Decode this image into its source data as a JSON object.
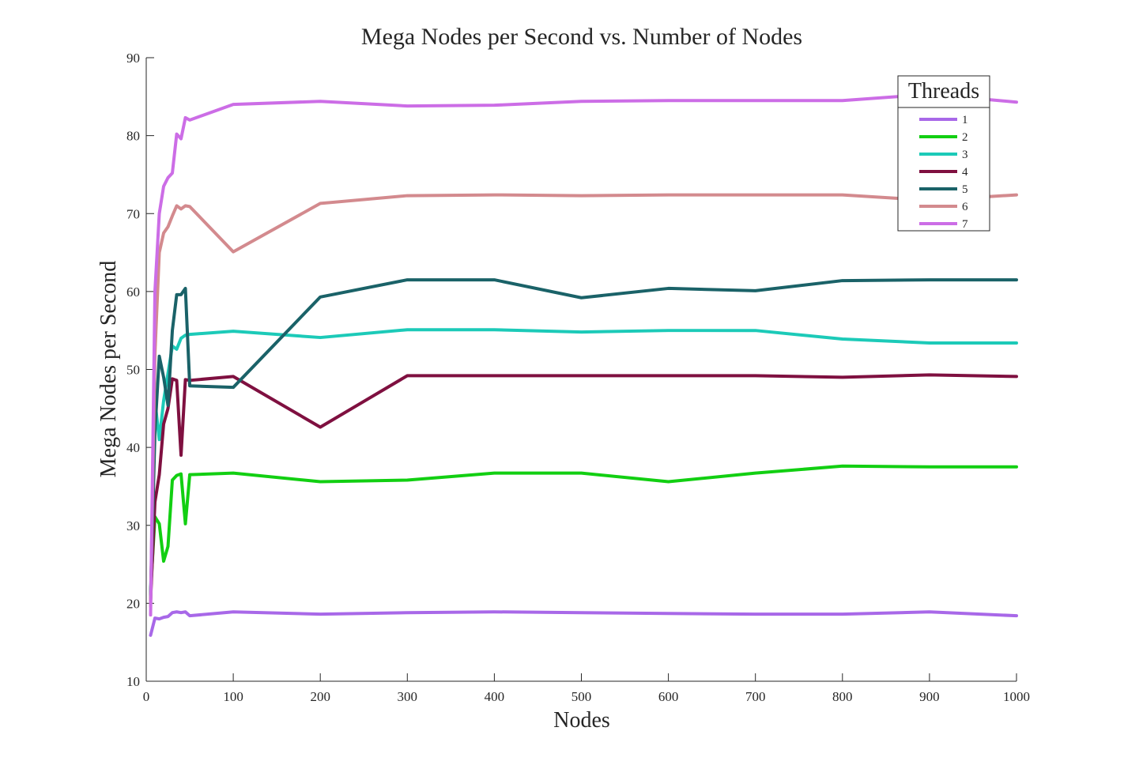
{
  "chart_data": {
    "type": "line",
    "title": "Mega Nodes per Second vs. Number of Nodes",
    "xlabel": "Nodes",
    "ylabel": "Mega Nodes per Second",
    "xlim": [
      0,
      1000
    ],
    "ylim": [
      10,
      90
    ],
    "xticks": [
      "0",
      "100",
      "200",
      "300",
      "400",
      "500",
      "600",
      "700",
      "800",
      "900",
      "1000"
    ],
    "yticks": [
      "10",
      "20",
      "30",
      "40",
      "50",
      "60",
      "70",
      "80",
      "90"
    ],
    "grid": false,
    "legend": {
      "title": "Threads",
      "position": "top-right"
    },
    "x": [
      5,
      10,
      15,
      20,
      25,
      30,
      35,
      40,
      45,
      50,
      100,
      200,
      300,
      400,
      500,
      600,
      700,
      800,
      900,
      1000
    ],
    "series": [
      {
        "name": "1",
        "color": "#a868e8",
        "values": [
          15.9,
          18.1,
          18.0,
          18.2,
          18.3,
          18.8,
          18.9,
          18.8,
          18.9,
          18.4,
          18.9,
          18.6,
          18.8,
          18.9,
          18.8,
          18.7,
          18.6,
          18.6,
          18.9,
          18.4
        ]
      },
      {
        "name": "2",
        "color": "#12cf12",
        "values": [
          21.5,
          31.1,
          30.2,
          25.4,
          27.3,
          35.8,
          36.4,
          36.6,
          30.2,
          36.5,
          36.7,
          35.6,
          35.8,
          36.7,
          36.7,
          35.6,
          36.7,
          37.6,
          37.5,
          37.5
        ]
      },
      {
        "name": "3",
        "color": "#1ccab8",
        "values": [
          20.3,
          46.0,
          41.0,
          46.0,
          49.5,
          53.0,
          52.6,
          54.0,
          54.4,
          54.5,
          54.9,
          54.1,
          55.1,
          55.1,
          54.8,
          55.0,
          55.0,
          53.9,
          53.4,
          53.4
        ]
      },
      {
        "name": "4",
        "color": "#7f1040",
        "values": [
          20.4,
          33.0,
          36.5,
          43.0,
          45.0,
          48.8,
          48.6,
          39.0,
          48.7,
          48.6,
          49.1,
          42.6,
          49.2,
          49.2,
          49.2,
          49.2,
          49.2,
          49.0,
          49.3,
          49.1
        ]
      },
      {
        "name": "5",
        "color": "#1a6268",
        "values": [
          21.1,
          42.0,
          51.7,
          49.0,
          45.4,
          55.0,
          59.6,
          59.6,
          60.4,
          47.9,
          47.7,
          59.3,
          61.5,
          61.5,
          59.2,
          60.4,
          60.1,
          61.4,
          61.5,
          61.5
        ]
      },
      {
        "name": "6",
        "color": "#d38a8e",
        "values": [
          19.6,
          52.0,
          65.0,
          67.5,
          68.3,
          69.7,
          71.0,
          70.6,
          71.0,
          70.9,
          65.1,
          71.3,
          72.3,
          72.4,
          72.3,
          72.4,
          72.4,
          72.4,
          71.7,
          72.4
        ]
      },
      {
        "name": "7",
        "color": "#cc6de6",
        "values": [
          18.5,
          60.0,
          70.0,
          73.5,
          74.6,
          75.2,
          80.2,
          79.6,
          82.3,
          82.0,
          84.0,
          84.4,
          83.8,
          83.9,
          84.4,
          84.5,
          84.5,
          84.5,
          85.3,
          84.3
        ]
      }
    ]
  }
}
